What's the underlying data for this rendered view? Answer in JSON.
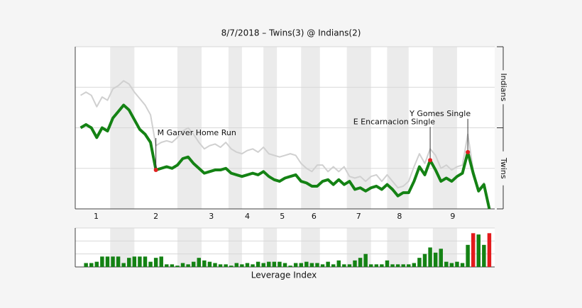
{
  "chart_data": [
    {
      "type": "line",
      "title": "8/7/2018 – Twins(3) @ Indians(2)",
      "xlim": [
        -1,
        77
      ],
      "ylim": [
        0,
        100
      ],
      "yticks": [
        0,
        25,
        50,
        75,
        100
      ],
      "grid": true,
      "bands": [
        [
          5.5,
          10
        ],
        [
          18,
          22.5
        ],
        [
          27.5,
          30
        ],
        [
          34,
          36.5
        ],
        [
          41,
          44.5
        ],
        [
          49.5,
          54
        ],
        [
          57,
          61
        ],
        [
          65.5,
          70
        ]
      ],
      "band_color": "#ebebeb",
      "xticks": [
        {
          "value": 2.9,
          "label": "1"
        },
        {
          "value": 14,
          "label": "2"
        },
        {
          "value": 24.3,
          "label": "3"
        },
        {
          "value": 31,
          "label": "4"
        },
        {
          "value": 37.5,
          "label": "5"
        },
        {
          "value": 43.4,
          "label": "6"
        },
        {
          "value": 51.7,
          "label": "7"
        },
        {
          "value": 59.3,
          "label": "8"
        },
        {
          "value": 69.2,
          "label": "9"
        }
      ],
      "side_labels": [
        {
          "label": "Indians",
          "range": [
            50,
            100
          ]
        },
        {
          "label": "Twins",
          "range": [
            0,
            50
          ]
        }
      ],
      "series": [
        {
          "color": "#d0d0d0",
          "width": 2,
          "values": [
            70,
            72,
            70,
            63,
            69,
            67,
            74,
            76,
            79,
            77,
            72,
            68,
            64,
            58,
            39,
            41,
            42,
            41,
            44,
            48,
            50,
            46,
            41,
            37,
            39,
            40,
            38,
            41,
            37,
            35,
            34,
            36,
            37,
            35,
            38,
            34,
            33,
            32,
            33,
            34,
            33,
            28,
            25,
            23,
            27,
            27,
            23,
            26,
            23,
            26,
            20,
            19,
            20,
            17,
            20,
            21,
            17,
            21,
            17,
            13,
            14,
            17,
            26,
            34,
            28,
            37,
            33,
            25,
            27,
            24,
            26,
            27,
            46,
            24,
            12,
            16,
            2
          ]
        },
        {
          "color": "#148214",
          "width": 4,
          "values": [
            50,
            52,
            50,
            44,
            50,
            48,
            56,
            60,
            64,
            61,
            55,
            49,
            46,
            41,
            24,
            25,
            26,
            25,
            27,
            31,
            32,
            28,
            25,
            22,
            23,
            24,
            24,
            25,
            22,
            21,
            20,
            21,
            22,
            21,
            23,
            20,
            18,
            17,
            19,
            20,
            21,
            17,
            16,
            14,
            14,
            17,
            18,
            15,
            18,
            15,
            17,
            12,
            13,
            11,
            13,
            14,
            12,
            15,
            12,
            8,
            10,
            10,
            17,
            26,
            21,
            30,
            24,
            17,
            19,
            17,
            20,
            22,
            35,
            22,
            11,
            15,
            0
          ]
        }
      ],
      "marker_color": "#e02020",
      "annotations": [
        {
          "x": 14,
          "label": "M Garver Home Run"
        },
        {
          "x": 65,
          "label": "E Encarnacion Single"
        },
        {
          "x": 72,
          "label": "Y Gomes Single"
        }
      ]
    },
    {
      "type": "bar",
      "xlabel": "Leverage Index",
      "xlim": [
        -1,
        77
      ],
      "ylim": [
        0,
        3
      ],
      "yticks": [
        0,
        1,
        2,
        3
      ],
      "grid": true,
      "bands": [
        [
          5.5,
          10
        ],
        [
          18,
          22.5
        ],
        [
          27.5,
          30
        ],
        [
          34,
          36.5
        ],
        [
          41,
          44.5
        ],
        [
          49.5,
          54
        ],
        [
          57,
          61
        ],
        [
          65.5,
          70
        ]
      ],
      "band_color": "#ebebeb",
      "values": [
        0,
        0.3,
        0.3,
        0.4,
        0.8,
        0.8,
        0.8,
        0.8,
        0.3,
        0.7,
        0.8,
        0.8,
        0.8,
        0.4,
        0.7,
        0.8,
        0.2,
        0.2,
        0.1,
        0.3,
        0.2,
        0.4,
        0.7,
        0.5,
        0.4,
        0.3,
        0.2,
        0.2,
        0.1,
        0.3,
        0.2,
        0.3,
        0.2,
        0.4,
        0.3,
        0.4,
        0.4,
        0.4,
        0.3,
        0.1,
        0.3,
        0.3,
        0.4,
        0.3,
        0.3,
        0.2,
        0.4,
        0.2,
        0.5,
        0.2,
        0.2,
        0.5,
        0.7,
        1.0,
        0.2,
        0.2,
        0.2,
        0.5,
        0.2,
        0.2,
        0.2,
        0.2,
        0.3,
        0.7,
        1.0,
        1.5,
        1.1,
        1.4,
        0.4,
        0.3,
        0.4,
        0.3,
        1.7,
        2.6,
        2.5,
        1.7,
        2.6
      ],
      "colors": [
        "#148214",
        "#148214",
        "#148214",
        "#148214",
        "#148214",
        "#148214",
        "#148214",
        "#148214",
        "#148214",
        "#148214",
        "#148214",
        "#148214",
        "#148214",
        "#148214",
        "#148214",
        "#148214",
        "#148214",
        "#148214",
        "#148214",
        "#148214",
        "#148214",
        "#148214",
        "#148214",
        "#148214",
        "#148214",
        "#148214",
        "#148214",
        "#148214",
        "#148214",
        "#148214",
        "#148214",
        "#148214",
        "#148214",
        "#148214",
        "#148214",
        "#148214",
        "#148214",
        "#148214",
        "#148214",
        "#148214",
        "#148214",
        "#148214",
        "#148214",
        "#148214",
        "#148214",
        "#148214",
        "#148214",
        "#148214",
        "#148214",
        "#148214",
        "#148214",
        "#148214",
        "#148214",
        "#148214",
        "#148214",
        "#148214",
        "#148214",
        "#148214",
        "#148214",
        "#148214",
        "#148214",
        "#148214",
        "#148214",
        "#148214",
        "#148214",
        "#148214",
        "#148214",
        "#148214",
        "#148214",
        "#148214",
        "#148214",
        "#148214",
        "#148214",
        "#e31a1c",
        "#148214",
        "#148214",
        "#e31a1c"
      ]
    }
  ]
}
